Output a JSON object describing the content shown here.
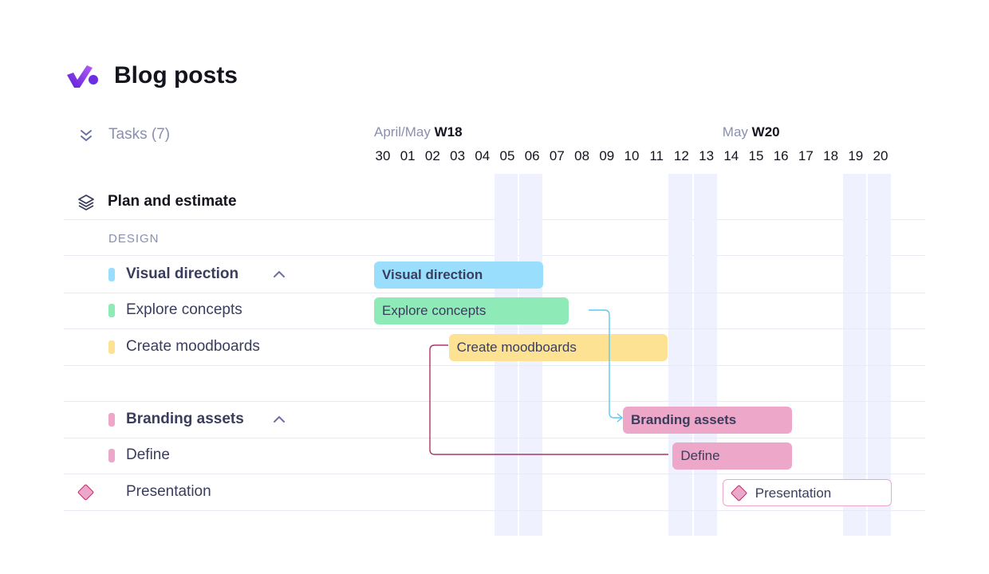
{
  "header": {
    "title": "Blog posts",
    "logo": "check-logo"
  },
  "tasks_toggle": {
    "label": "Tasks (7)",
    "icon": "double-chevron-down-icon"
  },
  "timeline": {
    "weeks": [
      {
        "month": "April/May",
        "week": "W18",
        "start": "30"
      },
      {
        "month": "May",
        "week": "W20",
        "start": "14"
      }
    ],
    "days": [
      "30",
      "01",
      "02",
      "03",
      "04",
      "05",
      "06",
      "07",
      "08",
      "09",
      "10",
      "11",
      "12",
      "13",
      "14",
      "15",
      "16",
      "17",
      "18",
      "19",
      "20"
    ],
    "weekends": [
      "05",
      "06",
      "12",
      "13",
      "19",
      "20"
    ],
    "weekend_color": "#eff2fe"
  },
  "group": {
    "label": "Plan and estimate",
    "icon": "layers-icon"
  },
  "section": {
    "label": "DESIGN"
  },
  "rows": [
    {
      "label": "Visual direction",
      "bold": true,
      "color": "#99dffd",
      "collapsible": true,
      "start": "30",
      "end": "06"
    },
    {
      "label": "Explore concepts",
      "bold": false,
      "color": "#8eebb8",
      "start": "30",
      "end": "07"
    },
    {
      "label": "Create moodboards",
      "bold": false,
      "color": "#fde293",
      "start": "03",
      "end": "11"
    },
    null,
    {
      "label": "Branding assets",
      "bold": true,
      "color": "#eda7c8",
      "collapsible": true,
      "start": "10",
      "end": "16"
    },
    {
      "label": "Define",
      "bold": false,
      "color": "#eda7c8",
      "start": "12",
      "end": "16"
    },
    {
      "label": "Presentation",
      "bold": false,
      "milestone": true,
      "color": "#eda7c8",
      "start": "14",
      "end": "20"
    }
  ],
  "dependencies": [
    {
      "from": "Explore concepts",
      "to": "Branding assets",
      "color": "#5bc8f5"
    },
    {
      "from": "Create moodboards",
      "to": "Define",
      "color": "#b0326a"
    }
  ]
}
